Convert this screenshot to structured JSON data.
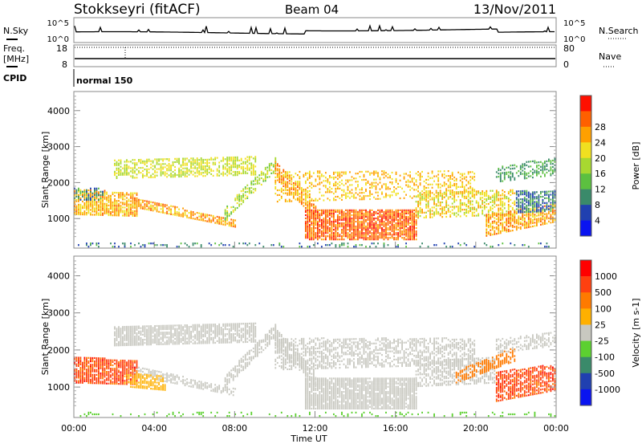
{
  "header": {
    "station": "Stokkseyri (fitACF)",
    "beam": "Beam 04",
    "date": "13/Nov/2011"
  },
  "top_panels": {
    "nsky_label": "N.Sky",
    "nsearch_label": "N.Search",
    "noise_ticks": [
      "10^5",
      "10^0"
    ],
    "freq_label": "Freq.",
    "freq_unit": "[MHz]",
    "freq_ticks": [
      "18",
      "8"
    ],
    "nave_label": "Nave",
    "nave_ticks": [
      "80",
      "0"
    ],
    "cpid_label": "CPID",
    "cpid_value": "normal 150"
  },
  "chart_data": [
    {
      "type": "heatmap",
      "title": "Power",
      "ylabel": "Slant Range [km]",
      "xlabel": "Time UT",
      "xlim": [
        0,
        24
      ],
      "ylim": [
        180,
        4530
      ],
      "yticks": [
        "1000",
        "2000",
        "3000",
        "4000"
      ],
      "xticks": [
        "00:00",
        "04:00",
        "08:00",
        "12:00",
        "16:00",
        "20:00",
        "00:00"
      ],
      "colorbar": {
        "label": "Power [dB]",
        "ticks": [
          "4",
          "8",
          "12",
          "16",
          "20",
          "24",
          "28"
        ],
        "colors": [
          "#0a14f0",
          "#2040b0",
          "#3a8a6a",
          "#5cc040",
          "#a8d830",
          "#f0e020",
          "#ffa000",
          "#ff6000",
          "#ff1000"
        ]
      },
      "bands": [
        {
          "t": [
            0,
            3.2
          ],
          "r0": [
            1100,
            1050
          ],
          "r1": [
            1800,
            1700
          ],
          "v": 25,
          "d": 0.8
        },
        {
          "t": [
            0,
            1.5
          ],
          "r0": [
            1500,
            1500
          ],
          "r1": [
            1850,
            1850
          ],
          "v": 10,
          "d": 0.5
        },
        {
          "t": [
            2,
            9
          ],
          "r0": [
            2100,
            2200
          ],
          "r1": [
            2600,
            2700
          ],
          "v": 20,
          "d": 0.6
        },
        {
          "t": [
            3,
            8
          ],
          "r0": [
            1300,
            750
          ],
          "r1": [
            1550,
            950
          ],
          "v": 26,
          "d": 0.7
        },
        {
          "t": [
            7.5,
            10
          ],
          "r0": [
            950,
            2300
          ],
          "r1": [
            1300,
            2700
          ],
          "v": 18,
          "d": 0.6
        },
        {
          "t": [
            10,
            12
          ],
          "r0": [
            2100,
            1000
          ],
          "r1": [
            2600,
            1400
          ],
          "v": 27,
          "d": 0.6
        },
        {
          "t": [
            11.5,
            17
          ],
          "r0": [
            400,
            400
          ],
          "r1": [
            1250,
            1250
          ],
          "v": 30,
          "d": 0.85
        },
        {
          "t": [
            10,
            20
          ],
          "r0": [
            1450,
            1600
          ],
          "r1": [
            2300,
            2300
          ],
          "v": 24,
          "d": 0.35
        },
        {
          "t": [
            17,
            22
          ],
          "r0": [
            1000,
            1100
          ],
          "r1": [
            1700,
            1800
          ],
          "v": 22,
          "d": 0.55
        },
        {
          "t": [
            20.5,
            24
          ],
          "r0": [
            500,
            900
          ],
          "r1": [
            1100,
            1400
          ],
          "v": 26,
          "d": 0.7
        },
        {
          "t": [
            22,
            24
          ],
          "r0": [
            1150,
            1200
          ],
          "r1": [
            1750,
            1750
          ],
          "v": 9,
          "d": 0.7
        },
        {
          "t": [
            21,
            24
          ],
          "r0": [
            2000,
            2200
          ],
          "r1": [
            2400,
            2700
          ],
          "v": 12,
          "d": 0.45
        },
        {
          "t": [
            0,
            24
          ],
          "r0": [
            200,
            200
          ],
          "r1": [
            320,
            320
          ],
          "v": 9,
          "d": 0.2
        }
      ]
    },
    {
      "type": "heatmap",
      "title": "Velocity",
      "ylabel": "Slant Range [km]",
      "xlabel": "Time UT",
      "xlim": [
        0,
        24
      ],
      "ylim": [
        180,
        4530
      ],
      "yticks": [
        "1000",
        "2000",
        "3000",
        "4000"
      ],
      "xticks": [
        "00:00",
        "04:00",
        "08:00",
        "12:00",
        "16:00",
        "20:00",
        "00:00"
      ],
      "colorbar": {
        "label": "Velocity [m s-1]",
        "ticks": [
          "1000",
          "500",
          "100",
          "25",
          "-25",
          "-100",
          "-500",
          "-1000"
        ],
        "colors": [
          "#0a14f0",
          "#2040b0",
          "#3a8a6a",
          "#5cd030",
          "#c8c8c0",
          "#ffb000",
          "#ff7a00",
          "#ff4010",
          "#ff0000"
        ]
      },
      "bands": [
        {
          "t": [
            2,
            9
          ],
          "r0": [
            2100,
            2200
          ],
          "r1": [
            2600,
            2700
          ],
          "v": 0,
          "d": 0.8
        },
        {
          "t": [
            3,
            8
          ],
          "r0": [
            1300,
            750
          ],
          "r1": [
            1550,
            950
          ],
          "v": 0,
          "d": 0.6
        },
        {
          "t": [
            7.5,
            10
          ],
          "r0": [
            950,
            2300
          ],
          "r1": [
            1300,
            2700
          ],
          "v": 0,
          "d": 0.7
        },
        {
          "t": [
            10,
            12
          ],
          "r0": [
            2100,
            1000
          ],
          "r1": [
            2600,
            1400
          ],
          "v": 0,
          "d": 0.7
        },
        {
          "t": [
            11.5,
            17
          ],
          "r0": [
            400,
            400
          ],
          "r1": [
            1250,
            1250
          ],
          "v": 0,
          "d": 0.9
        },
        {
          "t": [
            10,
            20
          ],
          "r0": [
            1450,
            1600
          ],
          "r1": [
            2300,
            2300
          ],
          "v": 0,
          "d": 0.55
        },
        {
          "t": [
            17,
            21
          ],
          "r0": [
            1000,
            1100
          ],
          "r1": [
            1700,
            1800
          ],
          "v": 0,
          "d": 0.55
        },
        {
          "t": [
            0,
            3.2
          ],
          "r0": [
            1100,
            1050
          ],
          "r1": [
            1800,
            1700
          ],
          "v": -700,
          "d": 0.85
        },
        {
          "t": [
            2.5,
            4.5
          ],
          "r0": [
            1000,
            900
          ],
          "r1": [
            1400,
            1300
          ],
          "v": -60,
          "d": 0.6
        },
        {
          "t": [
            19,
            22
          ],
          "r0": [
            1100,
            1700
          ],
          "r1": [
            1400,
            2100
          ],
          "v": -300,
          "d": 0.6
        },
        {
          "t": [
            21,
            24
          ],
          "r0": [
            600,
            900
          ],
          "r1": [
            1400,
            1600
          ],
          "v": -700,
          "d": 0.75
        },
        {
          "t": [
            21,
            24
          ],
          "r0": [
            1900,
            2100
          ],
          "r1": [
            2300,
            2500
          ],
          "v": 0,
          "d": 0.5
        },
        {
          "t": [
            0,
            24
          ],
          "r0": [
            200,
            200
          ],
          "r1": [
            320,
            320
          ],
          "v": 50,
          "d": 0.15
        }
      ]
    }
  ]
}
